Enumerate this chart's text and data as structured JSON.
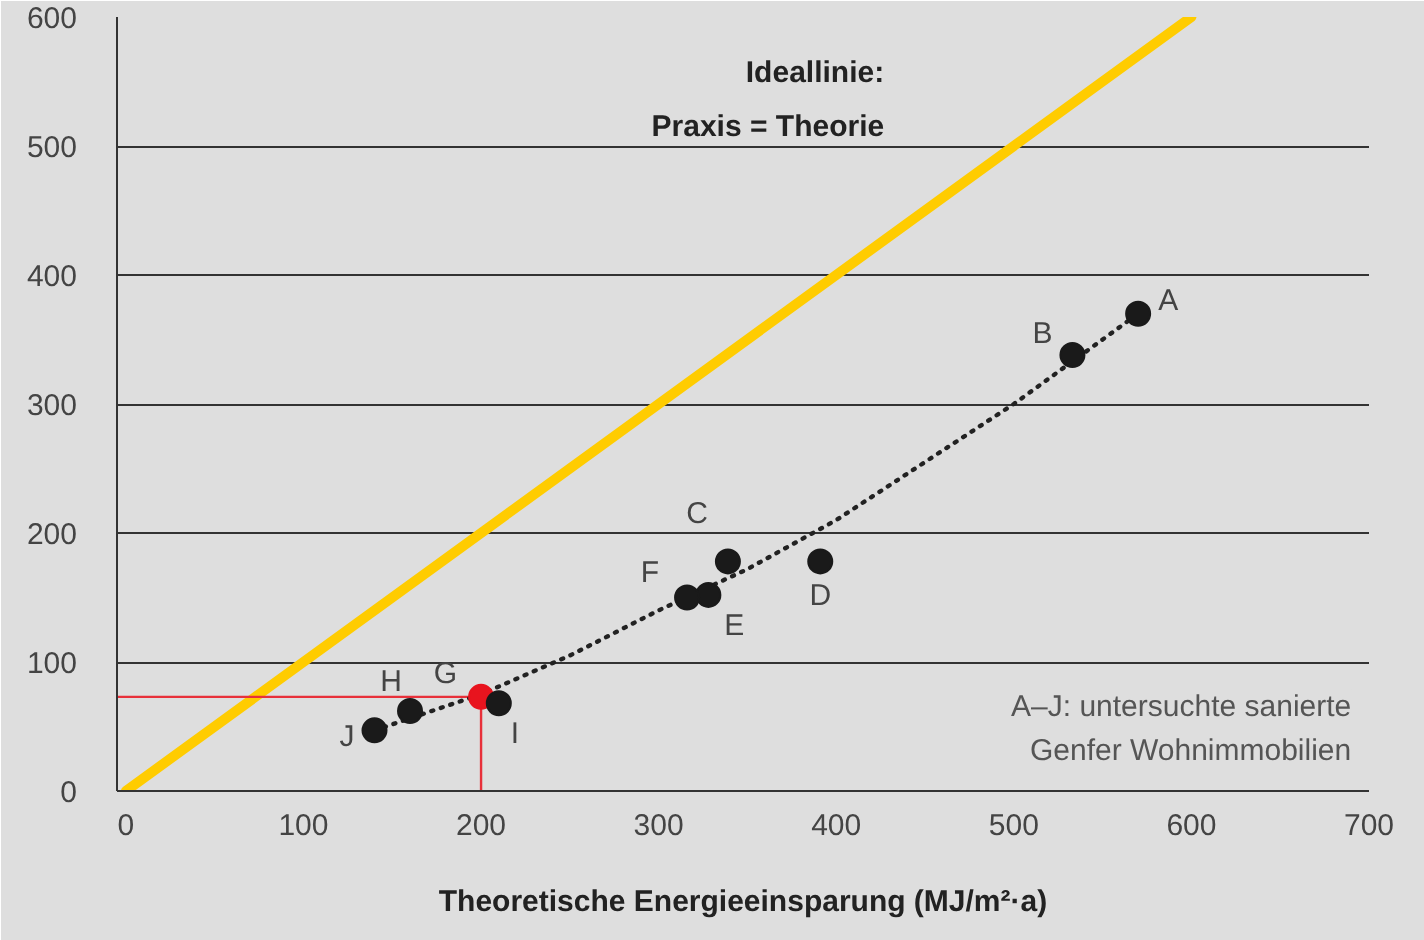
{
  "chart_data": {
    "type": "scatter",
    "xlabel": "Theoretische Energieeinsparung (MJ/m²·a)",
    "xlim": [
      -5,
      700
    ],
    "xticks": [
      0,
      100,
      200,
      300,
      400,
      500,
      600,
      700
    ],
    "ylim": [
      0,
      600
    ],
    "yticks": [
      0,
      100,
      200,
      300,
      400,
      500,
      600
    ],
    "grid": "y",
    "marker": "circle",
    "series": [
      {
        "type": "line",
        "color": "#ffcc00",
        "x": [
          0,
          600
        ],
        "values": [
          0,
          600
        ],
        "line_style": "solid",
        "marker": "none"
      },
      {
        "type": "line",
        "color": "#e8303a",
        "x": [
          -5,
          200,
          200
        ],
        "values": [
          73,
          73,
          0
        ],
        "line_style": "solid",
        "marker": "none"
      },
      {
        "type": "line",
        "color": "#222222",
        "line_style": "dotted",
        "marker": "none",
        "x": [
          140,
          200,
          250,
          300,
          350,
          400,
          450,
          500,
          550,
          570
        ],
        "values": [
          47,
          75,
          105,
          140,
          172,
          210,
          255,
          300,
          350,
          370
        ]
      },
      {
        "x": [
          570,
          533,
          339,
          391,
          328,
          316,
          200,
          160,
          210,
          140
        ],
        "values": [
          370,
          338,
          178,
          178,
          152,
          150,
          73,
          62,
          68,
          47
        ],
        "colors": [
          "#1a1a1a",
          "#1a1a1a",
          "#1a1a1a",
          "#1a1a1a",
          "#1a1a1a",
          "#1a1a1a",
          "#e8141e",
          "#1a1a1a",
          "#1a1a1a",
          "#1a1a1a"
        ]
      }
    ],
    "annotations": [
      "Ideallinie:\nPraxis = Theorie",
      "A–J: untersuchte sanierte\nGenfer Wohnimmobilien",
      {
        "text": "A",
        "x": 570,
        "y": 370
      },
      {
        "text": "B",
        "x": 533,
        "y": 338
      },
      {
        "text": "C",
        "x": 339,
        "y": 178
      },
      {
        "text": "D",
        "x": 391,
        "y": 178
      },
      {
        "text": "E",
        "x": 328,
        "y": 152
      },
      {
        "text": "F",
        "x": 316,
        "y": 150
      },
      {
        "text": "G",
        "x": 200,
        "y": 73
      },
      {
        "text": "H",
        "x": 160,
        "y": 62
      },
      {
        "text": "I",
        "x": 210,
        "y": 68
      },
      {
        "text": "J",
        "x": 140,
        "y": 47
      }
    ]
  }
}
